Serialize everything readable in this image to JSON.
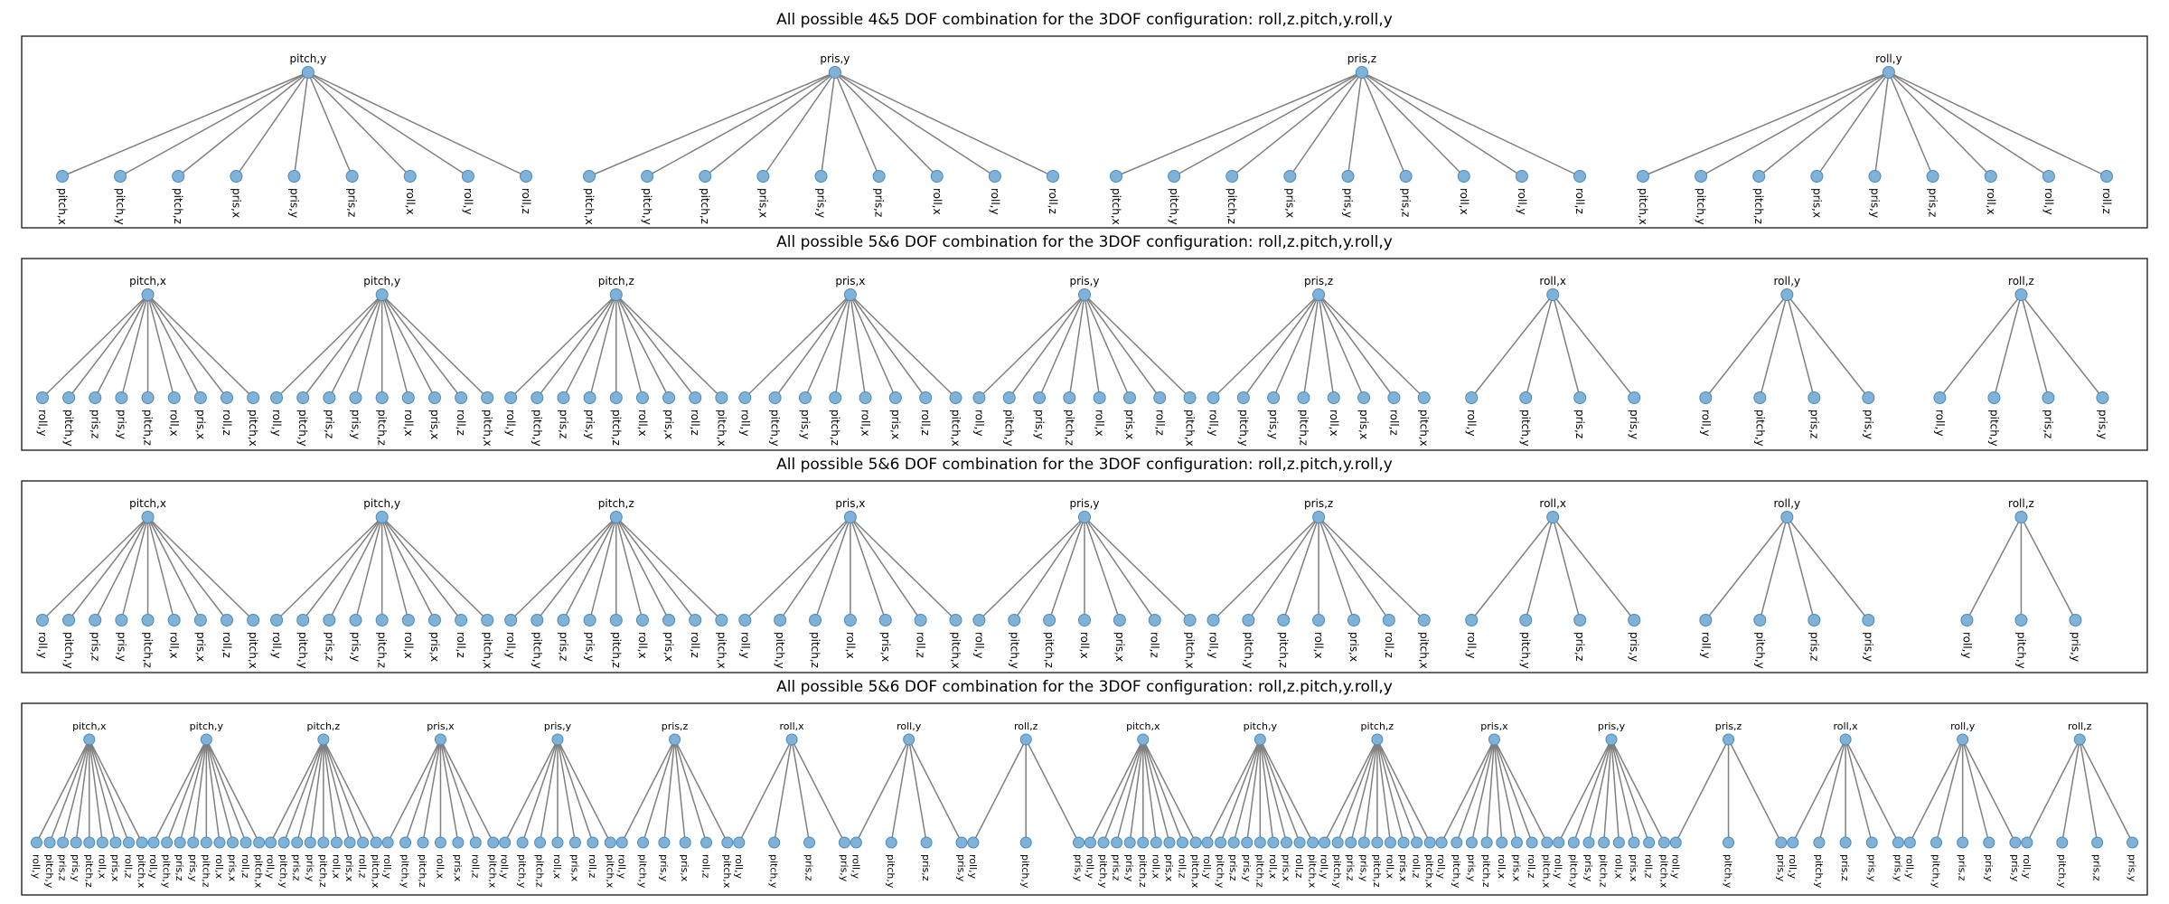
{
  "panels": [
    {
      "title": "All possible 4&5 DOF combination for the 3DOF configuration: roll,z.pitch,y.roll,y",
      "trees": [
        {
          "root": "pitch,y",
          "leaves": [
            "pitch,x",
            "pitch,y",
            "pitch,z",
            "pris,x",
            "pris,y",
            "pris,z",
            "roll,x",
            "roll,y",
            "roll,z"
          ]
        },
        {
          "root": "pris,y",
          "leaves": [
            "pitch,x",
            "pitch,y",
            "pitch,z",
            "pris,x",
            "pris,y",
            "pris,z",
            "roll,x",
            "roll,y",
            "roll,z"
          ]
        },
        {
          "root": "pris,z",
          "leaves": [
            "pitch,x",
            "pitch,y",
            "pitch,z",
            "pris,x",
            "pris,y",
            "pris,z",
            "roll,x",
            "roll,y",
            "roll,z"
          ]
        },
        {
          "root": "roll,y",
          "leaves": [
            "pitch,x",
            "pitch,y",
            "pitch,z",
            "pris,x",
            "pris,y",
            "pris,z",
            "roll,x",
            "roll,y",
            "roll,z"
          ]
        }
      ]
    },
    {
      "title": "All possible 5&6 DOF combination for the 3DOF configuration: roll,z.pitch,y.roll,y",
      "trees": [
        {
          "root": "pitch,x",
          "leaves": [
            "roll,y",
            "pitch,y",
            "pris,z",
            "pris,y",
            "pitch,z",
            "roll,x",
            "pris,x",
            "roll,z",
            "pitch,x"
          ]
        },
        {
          "root": "pitch,y",
          "leaves": [
            "roll,y",
            "pitch,y",
            "pris,z",
            "pris,y",
            "pitch,z",
            "roll,x",
            "pris,x",
            "roll,z",
            "pitch,x"
          ]
        },
        {
          "root": "pitch,z",
          "leaves": [
            "roll,y",
            "pitch,y",
            "pris,z",
            "pris,y",
            "pitch,z",
            "roll,x",
            "pris,x",
            "roll,z",
            "pitch,x"
          ]
        },
        {
          "root": "pris,x",
          "leaves": [
            "roll,y",
            "pitch,y",
            "pris,y",
            "pitch,z",
            "roll,x",
            "pris,x",
            "roll,z",
            "pitch,x"
          ]
        },
        {
          "root": "pris,y",
          "leaves": [
            "roll,y",
            "pitch,y",
            "pris,y",
            "pitch,z",
            "roll,x",
            "pris,x",
            "roll,z",
            "pitch,x"
          ]
        },
        {
          "root": "pris,z",
          "leaves": [
            "roll,y",
            "pitch,y",
            "pris,y",
            "pitch,z",
            "roll,x",
            "pris,x",
            "roll,z",
            "pitch,x"
          ]
        },
        {
          "root": "roll,x",
          "leaves": [
            "roll,y",
            "pitch,y",
            "pris,z",
            "pris,y"
          ]
        },
        {
          "root": "roll,y",
          "leaves": [
            "roll,y",
            "pitch,y",
            "pris,z",
            "pris,y"
          ]
        },
        {
          "root": "roll,z",
          "leaves": [
            "roll,y",
            "pitch,y",
            "pris,z",
            "pris,y"
          ]
        }
      ]
    },
    {
      "title": "All possible 5&6 DOF combination for the 3DOF configuration: roll,z.pitch,y.roll,y",
      "trees": [
        {
          "root": "pitch,x",
          "leaves": [
            "roll,y",
            "pitch,y",
            "pris,z",
            "pris,y",
            "pitch,z",
            "roll,x",
            "pris,x",
            "roll,z",
            "pitch,x"
          ]
        },
        {
          "root": "pitch,y",
          "leaves": [
            "roll,y",
            "pitch,y",
            "pris,z",
            "pris,y",
            "pitch,z",
            "roll,x",
            "pris,x",
            "roll,z",
            "pitch,x"
          ]
        },
        {
          "root": "pitch,z",
          "leaves": [
            "roll,y",
            "pitch,y",
            "pris,z",
            "pris,y",
            "pitch,z",
            "roll,x",
            "pris,x",
            "roll,z",
            "pitch,x"
          ]
        },
        {
          "root": "pris,x",
          "leaves": [
            "roll,y",
            "pitch,y",
            "pitch,z",
            "roll,x",
            "pris,x",
            "roll,z",
            "pitch,x"
          ]
        },
        {
          "root": "pris,y",
          "leaves": [
            "roll,y",
            "pitch,y",
            "pitch,z",
            "roll,x",
            "pris,x",
            "roll,z",
            "pitch,x"
          ]
        },
        {
          "root": "pris,z",
          "leaves": [
            "roll,y",
            "pitch,y",
            "pitch,z",
            "roll,x",
            "pris,x",
            "roll,z",
            "pitch,x"
          ]
        },
        {
          "root": "roll,x",
          "leaves": [
            "roll,y",
            "pitch,y",
            "pris,z",
            "pris,y"
          ]
        },
        {
          "root": "roll,y",
          "leaves": [
            "roll,y",
            "pitch,y",
            "pris,z",
            "pris,y"
          ]
        },
        {
          "root": "roll,z",
          "leaves": [
            "roll,y",
            "pitch,y",
            "pris,y"
          ]
        }
      ]
    },
    {
      "title": "All possible 5&6 DOF combination for the 3DOF configuration: roll,z.pitch,y.roll,y",
      "trees": [
        {
          "root": "pitch,x",
          "leaves": [
            "roll,y",
            "pitch,y",
            "pris,z",
            "pris,y",
            "pitch,z",
            "roll,x",
            "pris,x",
            "roll,z",
            "pitch,x"
          ]
        },
        {
          "root": "pitch,y",
          "leaves": [
            "roll,y",
            "pitch,y",
            "pris,z",
            "pris,y",
            "pitch,z",
            "roll,x",
            "pris,x",
            "roll,z",
            "pitch,x"
          ]
        },
        {
          "root": "pitch,z",
          "leaves": [
            "roll,y",
            "pitch,y",
            "pris,z",
            "pris,y",
            "pitch,z",
            "roll,x",
            "pris,x",
            "roll,z",
            "pitch,x"
          ]
        },
        {
          "root": "pris,x",
          "leaves": [
            "roll,y",
            "pitch,y",
            "pitch,z",
            "roll,x",
            "pris,x",
            "roll,z",
            "pitch,x"
          ]
        },
        {
          "root": "pris,y",
          "leaves": [
            "roll,y",
            "pitch,y",
            "pitch,z",
            "roll,x",
            "pris,x",
            "roll,z",
            "pitch,x"
          ]
        },
        {
          "root": "pris,z",
          "leaves": [
            "roll,y",
            "pitch,y",
            "pris,y",
            "pris,x",
            "roll,z",
            "pitch,x"
          ]
        },
        {
          "root": "roll,x",
          "leaves": [
            "roll,y",
            "pitch,y",
            "pris,z",
            "pris,y"
          ]
        },
        {
          "root": "roll,y",
          "leaves": [
            "roll,y",
            "pitch,y",
            "pris,z",
            "pris,y"
          ]
        },
        {
          "root": "roll,z",
          "leaves": [
            "roll,y",
            "pitch,y",
            "pris,y"
          ]
        },
        {
          "root": "pitch,x",
          "leaves": [
            "roll,y",
            "pitch,y",
            "pris,z",
            "pris,y",
            "pitch,z",
            "roll,x",
            "pris,x",
            "roll,z",
            "pitch,x"
          ]
        },
        {
          "root": "pitch,y",
          "leaves": [
            "roll,y",
            "pitch,y",
            "pris,z",
            "pris,y",
            "pitch,z",
            "roll,x",
            "pris,x",
            "roll,z",
            "pitch,x"
          ]
        },
        {
          "root": "pitch,z",
          "leaves": [
            "roll,y",
            "pitch,y",
            "pris,z",
            "pris,y",
            "pitch,z",
            "roll,x",
            "pris,x",
            "roll,z",
            "pitch,x"
          ]
        },
        {
          "root": "pris,x",
          "leaves": [
            "roll,y",
            "pitch,y",
            "pris,y",
            "pitch,z",
            "roll,x",
            "pris,x",
            "roll,z",
            "pitch,x"
          ]
        },
        {
          "root": "pris,y",
          "leaves": [
            "roll,y",
            "pitch,y",
            "pris,y",
            "pitch,z",
            "roll,x",
            "pris,x",
            "roll,z",
            "pitch,x"
          ]
        },
        {
          "root": "pris,z",
          "leaves": [
            "roll,y",
            "pitch,y",
            "pris,y"
          ]
        },
        {
          "root": "roll,x",
          "leaves": [
            "roll,y",
            "pitch,y",
            "pris,z",
            "pris,y",
            "pris,y"
          ]
        },
        {
          "root": "roll,y",
          "leaves": [
            "roll,y",
            "pitch,y",
            "pris,z",
            "pris,y",
            "pris,y"
          ]
        },
        {
          "root": "roll,z",
          "leaves": [
            "roll,y",
            "pitch,y",
            "pris,z",
            "pris,y"
          ]
        }
      ]
    }
  ]
}
